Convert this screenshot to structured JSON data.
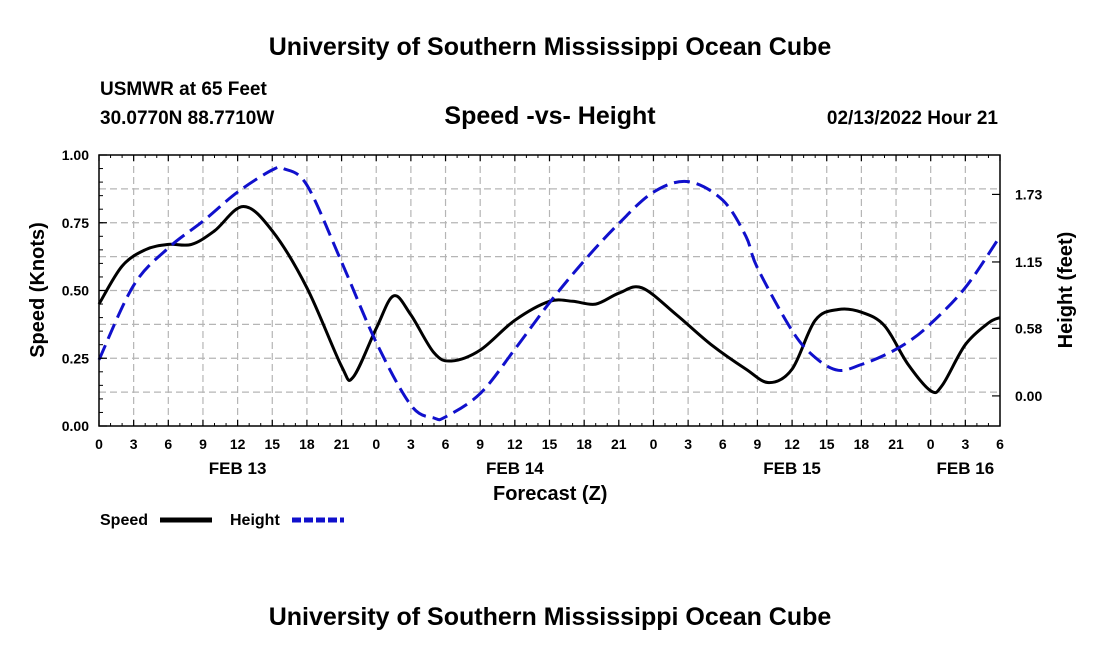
{
  "header": {
    "title": "University of Southern Mississippi Ocean Cube",
    "station": "USMWR at 65 Feet",
    "coords": "30.0770N  88.7710W",
    "date": "02/13/2022 Hour 21",
    "footer_title": "University of Southern Mississippi Ocean Cube"
  },
  "chart_data": {
    "type": "line",
    "title": "Speed -vs- Height",
    "xlabel": "Forecast (Z)",
    "ylabel": "Speed (Knots)",
    "y2label": "Height (feet)",
    "x_unit": "forecast hours from FEB 13 00Z",
    "xlim": [
      0,
      78
    ],
    "ylim": [
      0,
      1.0
    ],
    "y2lim": [
      -0.2583,
      2.0683
    ],
    "x_ticks": [
      0,
      3,
      6,
      9,
      12,
      15,
      18,
      21,
      24,
      27,
      30,
      33,
      36,
      39,
      42,
      45,
      48,
      51,
      54,
      57,
      60,
      63,
      66,
      69,
      72,
      75,
      78
    ],
    "x_tick_labels": [
      "0",
      "3",
      "6",
      "9",
      "12",
      "15",
      "18",
      "21",
      "0",
      "3",
      "6",
      "9",
      "12",
      "15",
      "18",
      "21",
      "0",
      "3",
      "6",
      "9",
      "12",
      "15",
      "18",
      "21",
      "0",
      "3",
      "6"
    ],
    "y_ticks": [
      0.0,
      0.25,
      0.5,
      0.75,
      1.0
    ],
    "y_tick_labels": [
      "0.00",
      "0.25",
      "0.50",
      "0.75",
      "1.00"
    ],
    "y2_ticks": [
      0.0,
      0.58,
      1.15,
      1.73
    ],
    "y2_tick_labels": [
      "0.00",
      "0.58",
      "1.15",
      "1.73"
    ],
    "date_labels": [
      {
        "x": 12,
        "label": "FEB 13"
      },
      {
        "x": 36,
        "label": "FEB 14"
      },
      {
        "x": 60,
        "label": "FEB 15"
      },
      {
        "x": 75,
        "label": "FEB 16"
      }
    ],
    "grid": true,
    "series": [
      {
        "name": "Speed",
        "axis": "left",
        "color": "#000000",
        "dash": "solid",
        "x": [
          0,
          2,
          4,
          6,
          8,
          10,
          12.5,
          15,
          18,
          21,
          22,
          24,
          25.5,
          27,
          29,
          30.5,
          33,
          36,
          39,
          41,
          43,
          45,
          47,
          50,
          53,
          56,
          58,
          60,
          62,
          64,
          66,
          68,
          70,
          72,
          73,
          75,
          77,
          78
        ],
        "y": [
          0.45,
          0.59,
          0.65,
          0.67,
          0.67,
          0.72,
          0.81,
          0.72,
          0.51,
          0.22,
          0.18,
          0.36,
          0.48,
          0.41,
          0.27,
          0.24,
          0.28,
          0.39,
          0.46,
          0.46,
          0.45,
          0.49,
          0.51,
          0.41,
          0.3,
          0.21,
          0.16,
          0.21,
          0.39,
          0.43,
          0.42,
          0.37,
          0.23,
          0.13,
          0.15,
          0.3,
          0.38,
          0.4
        ]
      },
      {
        "name": "Height",
        "axis": "right",
        "color": "#1010CC",
        "dash": "dashed",
        "x": [
          0,
          3,
          6,
          9,
          12,
          15,
          16,
          18,
          21,
          24,
          27,
          29,
          30,
          33,
          36,
          39,
          42,
          45,
          48,
          51,
          54,
          56,
          57,
          60,
          62,
          64,
          66,
          68,
          70,
          72,
          75,
          78
        ],
        "y": [
          0.31,
          0.95,
          1.27,
          1.5,
          1.75,
          1.94,
          1.95,
          1.81,
          1.15,
          0.46,
          -0.08,
          -0.19,
          -0.18,
          0.02,
          0.4,
          0.8,
          1.16,
          1.48,
          1.75,
          1.84,
          1.68,
          1.37,
          1.1,
          0.56,
          0.33,
          0.22,
          0.27,
          0.35,
          0.46,
          0.62,
          0.93,
          1.37
        ]
      }
    ],
    "legend": {
      "position": "bottom-left",
      "labels": [
        "Speed",
        "Height"
      ]
    }
  }
}
